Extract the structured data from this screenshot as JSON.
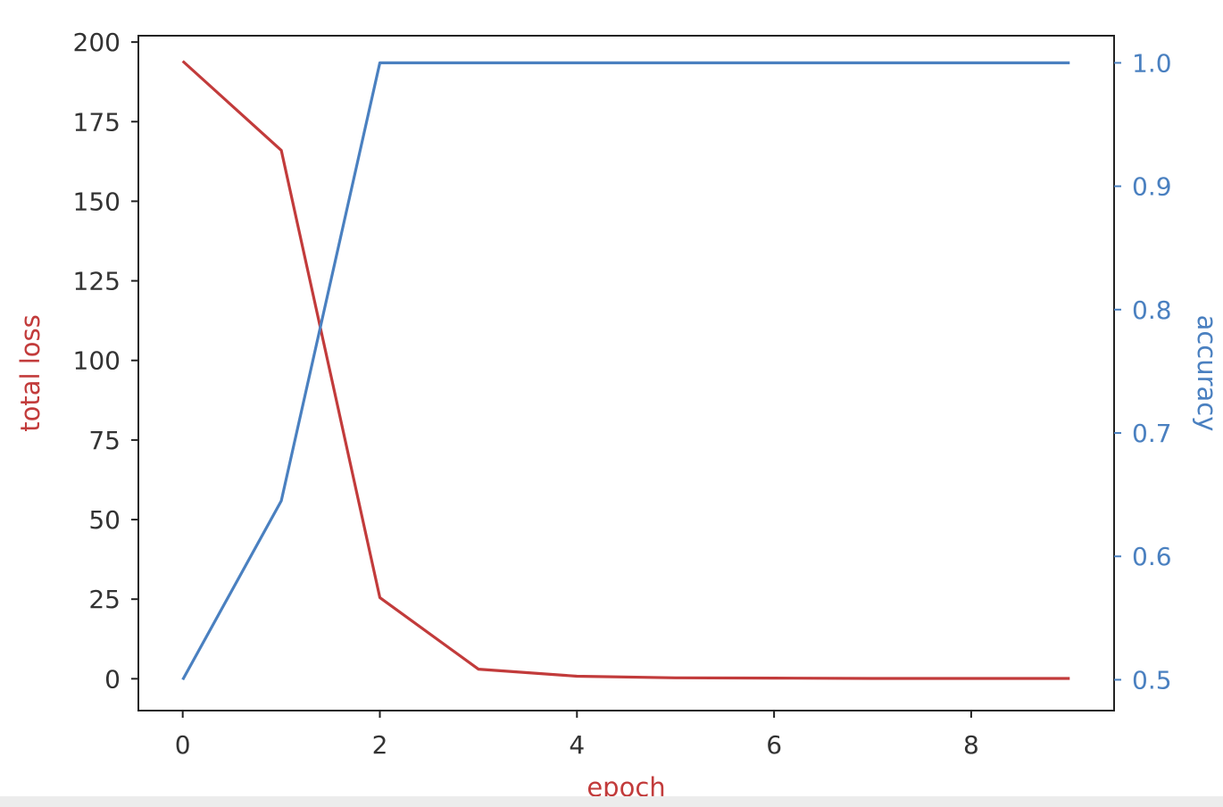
{
  "chart_data": {
    "type": "line",
    "title": "",
    "x": [
      0,
      1,
      2,
      3,
      4,
      5,
      6,
      7,
      8,
      9
    ],
    "xlabel": "epoch",
    "xlim": [
      -0.45,
      9.45
    ],
    "xticks": [
      "0",
      "2",
      "4",
      "6",
      "8"
    ],
    "y_left": {
      "label": "total loss",
      "ylim": [
        -10,
        202
      ],
      "ticks": [
        "0",
        "25",
        "50",
        "75",
        "100",
        "125",
        "150",
        "175",
        "200"
      ],
      "color": "#c23b3b"
    },
    "y_right": {
      "label": "accuracy",
      "ylim": [
        0.475,
        1.022
      ],
      "ticks": [
        "0.5",
        "0.6",
        "0.7",
        "0.8",
        "0.9",
        "1.0"
      ],
      "color": "#4a80c0"
    },
    "series": [
      {
        "axis": "left",
        "color": "#c23b3b",
        "values": [
          194,
          166,
          25.5,
          3,
          0.8,
          0.3,
          0.2,
          0.1,
          0.1,
          0.1
        ]
      },
      {
        "axis": "right",
        "color": "#4a80c0",
        "values": [
          0.5,
          0.645,
          1.0,
          1.0,
          1.0,
          1.0,
          1.0,
          1.0,
          1.0,
          1.0
        ]
      }
    ],
    "grid": false,
    "legend": "none"
  }
}
